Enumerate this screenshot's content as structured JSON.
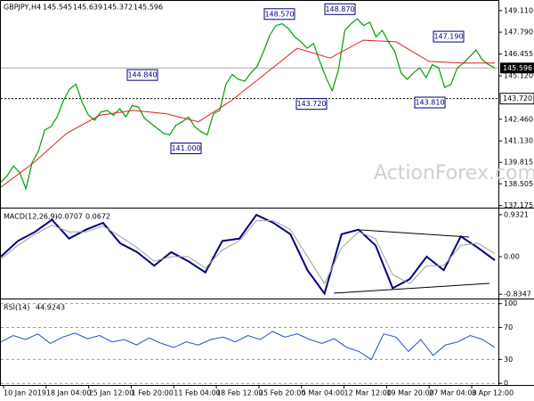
{
  "chart_data": {
    "type": "line",
    "symbol": "GBPJPY,H4",
    "ohlc": [
      145.545,
      145.639,
      145.372,
      145.596
    ],
    "watermark": "ActionForex.com",
    "xlabels": [
      "10 Jan 2019",
      "18 Jan 04:00",
      "25 Jan 12:00",
      "1 Feb 20:00",
      "11 Feb 04:00",
      "18 Feb 12:00",
      "25 Feb 20:00",
      "5 Mar 04:00",
      "12 Mar 12:00",
      "19 Mar 20:00",
      "27 Mar 04:00",
      "3 Apr 12:00"
    ],
    "ylim": [
      137.1,
      149.65
    ],
    "yticks": [
      {
        "value": 149.11,
        "label": "149.110"
      },
      {
        "value": 147.79,
        "label": "147.790"
      },
      146.455,
      {
        "value": 145.12,
        "label": "145.120"
      },
      {
        "value": 142.46,
        "label": "142.460"
      },
      {
        "value": 141.13,
        "label": "141.130"
      },
      139.815,
      138.505,
      137.175
    ],
    "series": [
      {
        "name": "GBPJPY,H4",
        "color": "#00a000",
        "values": [
          138.6,
          139.0,
          139.6,
          139.2,
          138.2,
          139.8,
          140.5,
          141.8,
          142.0,
          142.6,
          143.6,
          144.3,
          144.6,
          143.5,
          142.7,
          142.4,
          142.9,
          143.0,
          142.7,
          143.1,
          142.6,
          143.3,
          143.2,
          142.5,
          142.2,
          141.9,
          141.6,
          141.5,
          142.1,
          142.3,
          142.6,
          142.0,
          141.7,
          141.5,
          142.8,
          143.0,
          144.6,
          145.2,
          144.9,
          144.8,
          145.3,
          145.7,
          146.6,
          147.6,
          148.2,
          148.3,
          148.0,
          147.5,
          147.2,
          146.8,
          147.1,
          146.0,
          145.0,
          144.2,
          145.5,
          147.9,
          148.3,
          148.6,
          148.2,
          148.4,
          147.5,
          147.9,
          147.2,
          146.6,
          145.3,
          144.9,
          145.3,
          145.6,
          145.0,
          145.8,
          145.6,
          144.4,
          144.6,
          145.6,
          145.9,
          146.3,
          146.7,
          146.1,
          145.8,
          145.6
        ]
      },
      {
        "name": "MA",
        "color": "#e02020",
        "values": [
          138.3,
          139.8,
          141.6,
          142.7,
          143.0,
          142.8,
          142.3,
          143.6,
          145.2,
          146.8,
          146.2,
          147.3,
          147.2,
          146.0,
          145.9,
          145.9
        ]
      }
    ],
    "annotations": [
      {
        "value": 148.57,
        "label": "148.570"
      },
      {
        "value": 148.87,
        "label": "148.870"
      },
      {
        "value": 144.84,
        "label": "144.840"
      },
      {
        "value": 147.19,
        "label": "147.190"
      },
      {
        "value": 143.72,
        "label": "143.720"
      },
      {
        "value": 143.81,
        "label": "143.810"
      },
      {
        "value": 141.0,
        "label": "141.000"
      }
    ],
    "last_price": 145.596,
    "support": {
      "value": 143.72,
      "label": "143.720"
    },
    "macd": {
      "name": "MACD(12,26,9)",
      "values_printed": [
        -0.0707,
        0.0672
      ],
      "ylim": [
        -0.91,
        1.03
      ],
      "yticks": [
        0.9321,
        {
          "value": 0,
          "label": "0.00"
        },
        -0.8347
      ],
      "series": [
        {
          "name": "MACD",
          "color": "#000080",
          "values": [
            0.0,
            0.35,
            0.55,
            0.82,
            0.4,
            0.6,
            0.75,
            0.3,
            0.1,
            -0.2,
            0.1,
            -0.1,
            -0.35,
            0.35,
            0.4,
            0.93,
            0.75,
            0.5,
            -0.3,
            -0.82,
            0.5,
            0.6,
            0.25,
            -0.7,
            -0.5,
            0.0,
            -0.3,
            0.45,
            0.2,
            -0.08
          ]
        },
        {
          "name": "Signal",
          "color": "#a0a0a0",
          "values": [
            -0.05,
            0.25,
            0.5,
            0.7,
            0.55,
            0.55,
            0.68,
            0.45,
            0.2,
            -0.1,
            0.0,
            0.0,
            -0.25,
            0.15,
            0.35,
            0.8,
            0.8,
            0.6,
            0.0,
            -0.6,
            0.2,
            0.55,
            0.4,
            -0.4,
            -0.6,
            -0.2,
            -0.2,
            0.25,
            0.3,
            0.07
          ]
        }
      ]
    },
    "rsi": {
      "name": "RSI(14)",
      "value_printed": 44.9243,
      "ylim": [
        -2,
        103
      ],
      "yticks": [
        100,
        70,
        30,
        0
      ],
      "color": "#1f4fd0",
      "values": [
        52,
        60,
        55,
        62,
        50,
        58,
        63,
        56,
        60,
        52,
        55,
        48,
        57,
        50,
        45,
        52,
        48,
        55,
        58,
        52,
        60,
        55,
        65,
        58,
        62,
        55,
        50,
        56,
        45,
        40,
        30,
        62,
        58,
        40,
        55,
        35,
        48,
        52,
        60,
        55,
        45
      ]
    }
  }
}
